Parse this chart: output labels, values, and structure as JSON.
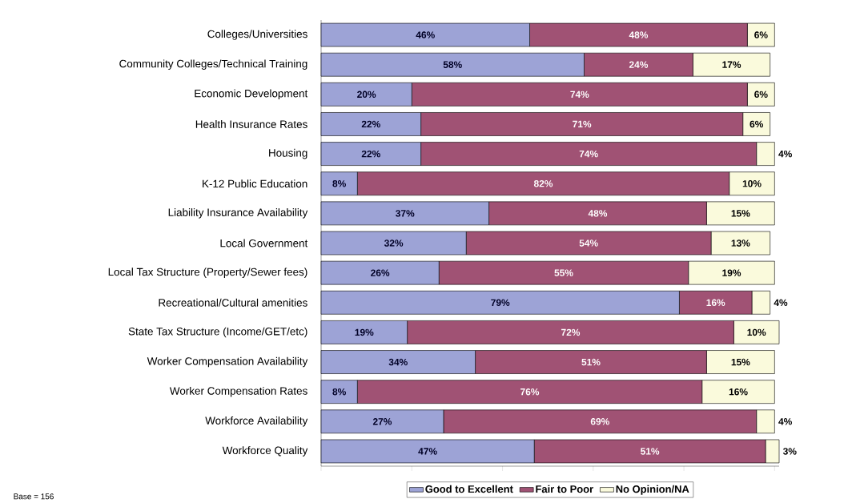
{
  "chart_data": {
    "type": "bar",
    "orientation": "horizontal",
    "stacked": true,
    "categories": [
      "Colleges/Universities",
      "Community Colleges/Technical Training",
      "Economic Development",
      "Health Insurance Rates",
      "Housing",
      "K-12 Public Education",
      "Liability Insurance Availability",
      "Local Government",
      "Local Tax Structure (Property/Sewer fees)",
      "Recreational/Cultural amenities",
      "State Tax Structure (Income/GET/etc)",
      "Worker Compensation Availability",
      "Worker Compensation Rates",
      "Workforce Availability",
      "Workforce Quality"
    ],
    "series": [
      {
        "name": "Good to Excellent",
        "color": "#9da3d6",
        "values": [
          46,
          58,
          20,
          22,
          22,
          8,
          37,
          32,
          26,
          79,
          19,
          34,
          8,
          27,
          47
        ],
        "value_labels": [
          "46%",
          "58%",
          "20%",
          "22%",
          "22%",
          "8%",
          "37%",
          "32%",
          "26%",
          "79%",
          "19%",
          "34%",
          "8%",
          "27%",
          "47%"
        ]
      },
      {
        "name": "Fair to Poor",
        "color": "#a05274",
        "values": [
          48,
          24,
          74,
          71,
          74,
          82,
          48,
          54,
          55,
          16,
          72,
          51,
          76,
          69,
          51
        ],
        "value_labels": [
          "48%",
          "24%",
          "74%",
          "71%",
          "74%",
          "82%",
          "48%",
          "54%",
          "55%",
          "16%",
          "72%",
          "51%",
          "76%",
          "69%",
          "51%"
        ]
      },
      {
        "name": "No Opinion/NA",
        "color": "#fafadc",
        "values": [
          6,
          17,
          6,
          6,
          4,
          10,
          15,
          13,
          19,
          4,
          10,
          15,
          16,
          4,
          3
        ],
        "value_labels": [
          "6%",
          "17%",
          "6%",
          "6%",
          "4%",
          "10%",
          "15%",
          "13%",
          "19%",
          "4%",
          "10%",
          "15%",
          "16%",
          "4%",
          "3%"
        ]
      }
    ],
    "xlim": [
      0,
      101
    ],
    "xticks": [
      {
        "value": 0,
        "label": null
      },
      {
        "value": 20,
        "label": null
      },
      {
        "value": 40,
        "label": null
      },
      {
        "value": 60,
        "label": null
      },
      {
        "value": 80,
        "label": null
      },
      {
        "value": 100,
        "label": null
      }
    ],
    "tick_labels": "y",
    "legend": "bottom",
    "grid": false,
    "annotations": [
      "Base = 156"
    ]
  }
}
